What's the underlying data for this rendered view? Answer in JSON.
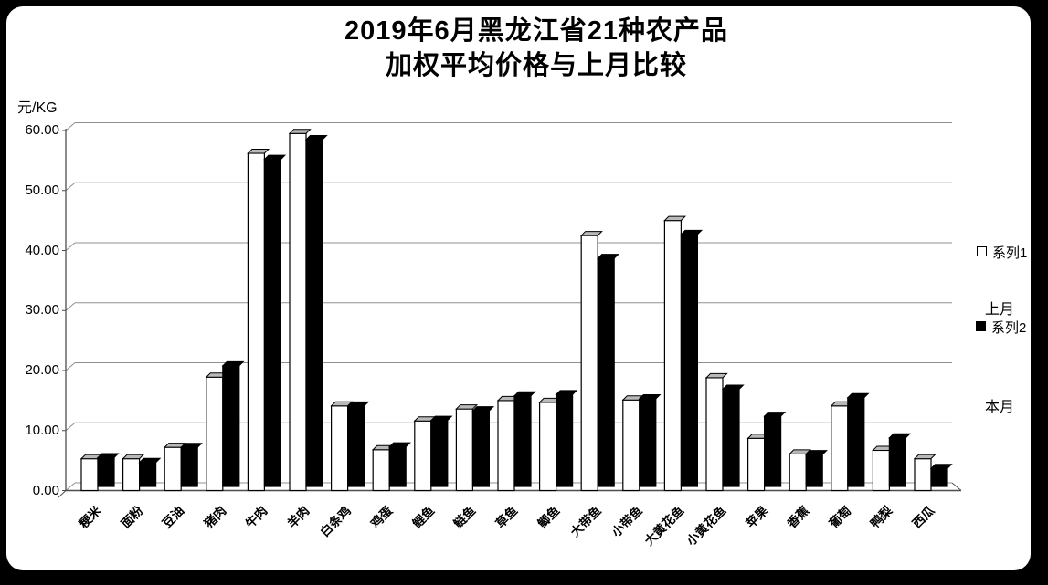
{
  "title": {
    "line1": "2019年6月黑龙江省21种农产品",
    "line2": "加权平均价格与上月比较"
  },
  "y_axis": {
    "unit": "元/KG",
    "tick_labels": [
      "0.00",
      "10.00",
      "20.00",
      "30.00",
      "40.00",
      "50.00",
      "60.00"
    ],
    "min": 0,
    "max": 60,
    "step": 10
  },
  "legend": {
    "series1_label": "系列1",
    "series2_label": "系列2",
    "note_last_month": "上月",
    "note_this_month": "本月",
    "series1_swatch_color": "#ffffff",
    "series2_swatch_color": "#000000"
  },
  "chart_data": {
    "type": "bar",
    "title": "2019年6月黑龙江省21种农产品加权平均价格与上月比较",
    "ylabel": "元/KG",
    "ylim": [
      0,
      60
    ],
    "ytick_step": 10,
    "grid": true,
    "legend_position": "right",
    "style": "3d-effect-clustered-columns",
    "categories": [
      "粳米",
      "面粉",
      "豆油",
      "猪肉",
      "牛肉",
      "羊肉",
      "白条鸡",
      "鸡蛋",
      "鲤鱼",
      "鲢鱼",
      "草鱼",
      "鲫鱼",
      "大带鱼",
      "小带鱼",
      "大黄花鱼",
      "小黄花鱼",
      "苹果",
      "香蕉",
      "葡萄",
      "鸭梨",
      "西瓜"
    ],
    "series": [
      {
        "name": "系列1",
        "meaning": "上月",
        "color": "#ffffff",
        "values": [
          5.3,
          5.3,
          7.2,
          18.9,
          56.2,
          59.5,
          14.1,
          6.8,
          11.6,
          13.6,
          15.0,
          14.7,
          42.5,
          15.1,
          45.0,
          18.8,
          8.7,
          6.1,
          14.1,
          6.7,
          5.3
        ]
      },
      {
        "name": "系列2",
        "meaning": "本月",
        "color": "#000000",
        "values": [
          4.8,
          4.0,
          6.5,
          20.1,
          54.5,
          57.8,
          13.4,
          6.6,
          11.0,
          12.6,
          15.1,
          15.3,
          38.0,
          14.6,
          42.0,
          16.2,
          11.7,
          5.3,
          14.8,
          8.1,
          3.0
        ]
      }
    ]
  }
}
